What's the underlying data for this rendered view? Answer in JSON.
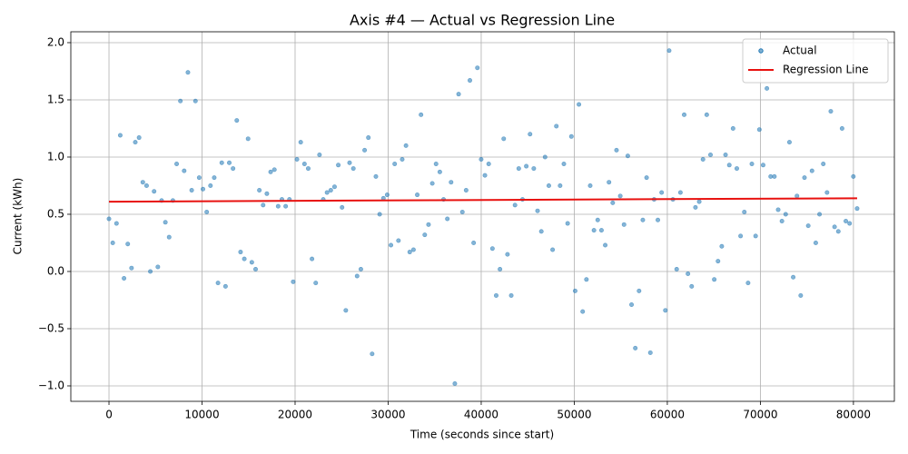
{
  "chart_data": {
    "type": "scatter",
    "title": "Axis #4 — Actual vs Regression Line",
    "x_label": "Time (seconds since start)",
    "y_label": "Current (kWh)",
    "xlim": [
      -4100,
      84400
    ],
    "ylim": [
      -1.135,
      2.095
    ],
    "xticks": [
      0,
      10000,
      20000,
      30000,
      40000,
      50000,
      60000,
      70000,
      80000
    ],
    "yticks": [
      {
        "value": -1,
        "label": "−1.0"
      },
      {
        "value": -0.5,
        "label": "−0.5"
      },
      {
        "value": 0,
        "label": "0.0"
      },
      0.5,
      {
        "value": 1,
        "label": "1.0"
      },
      1.5,
      {
        "value": 2,
        "label": "2.0"
      }
    ],
    "grid": true,
    "legend": "upper-right",
    "series": [
      {
        "name": "Actual",
        "type": "scatter",
        "color": "#1f77b4",
        "x": [
          0,
          404,
          808,
          1212,
          1616,
          2020,
          2424,
          2828,
          3232,
          3636,
          4040,
          4444,
          4848,
          5252,
          5656,
          6060,
          6464,
          6868,
          7272,
          7676,
          8080,
          8484,
          8888,
          9292,
          9696,
          10100,
          10504,
          10908,
          11312,
          11716,
          12120,
          12524,
          12928,
          13332,
          13736,
          14140,
          14544,
          14948,
          15352,
          15756,
          16160,
          16564,
          16968,
          17372,
          17776,
          18180,
          18584,
          18988,
          19392,
          19796,
          20200,
          20604,
          21008,
          21412,
          21816,
          22220,
          22624,
          23028,
          23432,
          23836,
          24240,
          24644,
          25048,
          25452,
          25856,
          26260,
          26664,
          27068,
          27472,
          27876,
          28280,
          28684,
          29088,
          29492,
          29896,
          30300,
          30704,
          31108,
          31512,
          31916,
          32320,
          32724,
          33128,
          33532,
          33936,
          34340,
          34744,
          35148,
          35552,
          35956,
          36360,
          36764,
          37168,
          37572,
          37976,
          38380,
          38784,
          39188,
          39592,
          39996,
          40400,
          40804,
          41208,
          41612,
          42016,
          42420,
          42824,
          43228,
          43632,
          44036,
          44440,
          44844,
          45248,
          45652,
          46056,
          46460,
          46864,
          47268,
          47672,
          48076,
          48480,
          48884,
          49288,
          49692,
          50096,
          50500,
          50904,
          51308,
          51712,
          52116,
          52520,
          52924,
          53328,
          53732,
          54136,
          54540,
          54944,
          55348,
          55752,
          56156,
          56560,
          56964,
          57368,
          57772,
          58176,
          58580,
          58984,
          59388,
          59792,
          60196,
          60600,
          61004,
          61408,
          61812,
          62216,
          62620,
          63024,
          63428,
          63832,
          64236,
          64640,
          65044,
          65448,
          65852,
          66256,
          66660,
          67064,
          67468,
          67872,
          68276,
          68680,
          69084,
          69488,
          69892,
          70296,
          70700,
          71104,
          71508,
          71912,
          72316,
          72720,
          73124,
          73528,
          73932,
          74336,
          74740,
          75144,
          75548,
          75952,
          76356,
          76760,
          77164,
          77568,
          77972,
          78376,
          78780,
          79184,
          79588,
          79992,
          80396
        ],
        "values": [
          0.46,
          0.25,
          0.42,
          1.19,
          -0.06,
          0.24,
          0.03,
          1.13,
          1.17,
          0.78,
          0.75,
          0.0,
          0.7,
          0.04,
          0.62,
          0.43,
          0.3,
          0.62,
          0.94,
          1.49,
          0.88,
          1.74,
          0.71,
          1.49,
          0.82,
          0.72,
          0.52,
          0.75,
          0.82,
          -0.1,
          0.95,
          -0.13,
          0.95,
          0.9,
          1.32,
          0.17,
          0.11,
          1.16,
          0.08,
          0.02,
          0.71,
          0.58,
          0.68,
          0.87,
          0.89,
          0.57,
          0.63,
          0.57,
          0.63,
          -0.09,
          0.98,
          1.13,
          0.94,
          0.9,
          0.11,
          -0.1,
          1.02,
          0.63,
          0.69,
          0.71,
          0.74,
          0.93,
          0.56,
          -0.34,
          0.95,
          0.9,
          -0.04,
          0.02,
          1.06,
          1.17,
          -0.72,
          0.83,
          0.5,
          0.64,
          0.67,
          0.23,
          0.94,
          0.27,
          0.98,
          1.1,
          0.17,
          0.19,
          0.67,
          1.37,
          0.32,
          0.41,
          0.77,
          0.94,
          0.87,
          0.63,
          0.46,
          0.78,
          -0.98,
          1.55,
          0.52,
          0.71,
          1.67,
          0.25,
          1.78,
          0.98,
          0.84,
          0.94,
          0.2,
          -0.21,
          0.02,
          1.16,
          0.15,
          -0.21,
          0.58,
          0.9,
          0.63,
          0.92,
          1.2,
          0.9,
          0.53,
          0.35,
          1.0,
          0.75,
          0.19,
          1.27,
          0.75,
          0.94,
          0.42,
          1.18,
          -0.17,
          1.46,
          -0.35,
          -0.07,
          0.75,
          0.36,
          0.45,
          0.36,
          0.23,
          0.78,
          0.6,
          1.06,
          0.66,
          0.41,
          1.01,
          -0.29,
          -0.67,
          -0.17,
          0.45,
          0.82,
          -0.71,
          0.63,
          0.45,
          0.69,
          -0.34,
          1.93,
          0.63,
          0.02,
          0.69,
          1.37,
          -0.02,
          -0.13,
          0.56,
          0.61,
          0.98,
          1.37,
          1.02,
          -0.07,
          0.09,
          0.22,
          1.02,
          0.93,
          1.25,
          0.9,
          0.31,
          0.52,
          -0.1,
          0.94,
          0.31,
          1.24,
          0.93,
          1.6,
          0.83,
          0.83,
          0.54,
          0.44,
          0.5,
          1.13,
          -0.05,
          0.66,
          -0.21,
          0.82,
          0.4,
          0.88,
          0.25,
          0.5,
          0.94,
          0.69,
          1.4,
          0.39,
          0.35,
          1.25,
          0.44,
          0.42,
          0.83,
          0.55
        ]
      },
      {
        "name": "Regression Line",
        "type": "line",
        "color": "#e8110f",
        "x": [
          0,
          80396
        ],
        "values": [
          0.61,
          0.64
        ]
      }
    ]
  }
}
